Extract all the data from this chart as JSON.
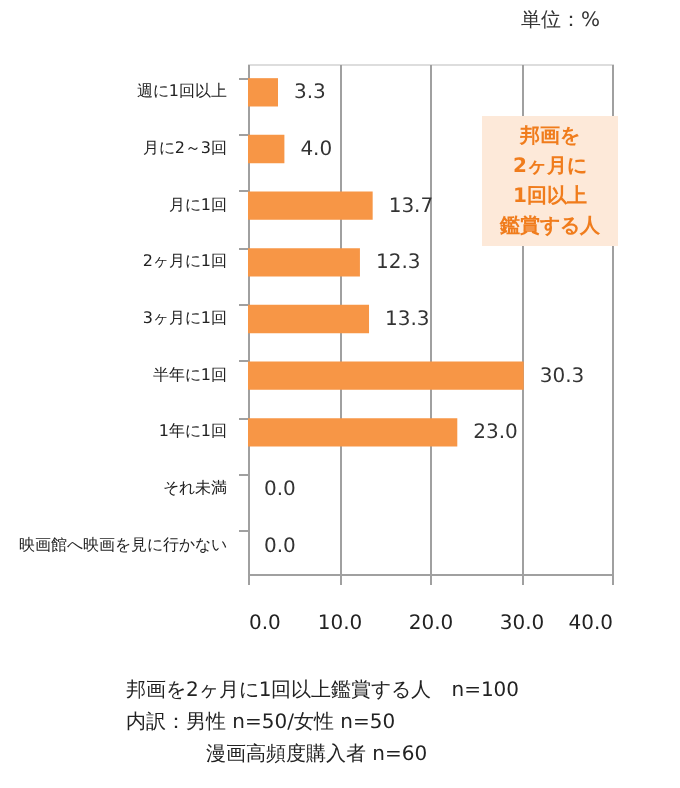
{
  "chart_data": {
    "type": "bar",
    "orientation": "horizontal",
    "categories": [
      "週に1回以上",
      "月に2～3回",
      "月に1回",
      "2ヶ月に1回",
      "3ヶ月に1回",
      "半年に1回",
      "1年に1回",
      "それ未満",
      "映画館へ映画を見に行かない"
    ],
    "values": [
      3.3,
      4.0,
      13.7,
      12.3,
      13.3,
      30.3,
      23.0,
      0.0,
      0.0
    ],
    "value_labels": [
      "3.3",
      "4.0",
      "13.7",
      "12.3",
      "13.3",
      "30.3",
      "23.0",
      "0.0",
      "0.0"
    ],
    "color": "#f79646",
    "xlim": [
      0,
      40
    ],
    "xticks": [
      {
        "value": 0,
        "label": "0.0"
      },
      {
        "value": 10,
        "label": "10.0"
      },
      {
        "value": 20,
        "label": "20.0"
      },
      {
        "value": 30,
        "label": "30.0"
      },
      {
        "value": 40,
        "label": "40.0"
      }
    ],
    "grid": "x",
    "annotations": [
      "単位：%",
      "邦画を",
      "2ヶ月に",
      "1回以上",
      "鑑賞する人",
      "邦画を2ヶ月に1回以上鑑賞する人　n=100",
      "内訳：男性 n=50/女性 n=50",
      "漫画高頻度購入者 n=60"
    ]
  }
}
